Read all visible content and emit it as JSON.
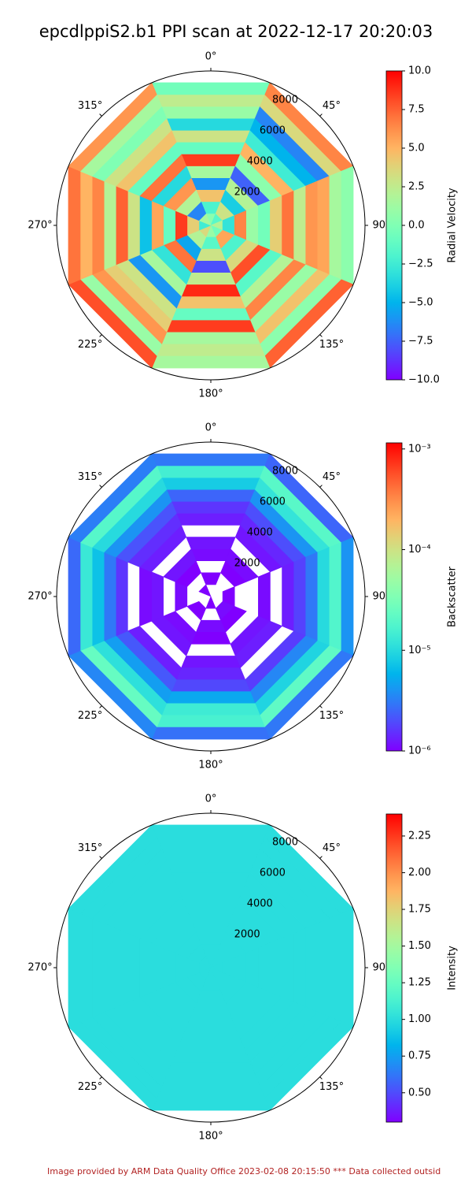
{
  "title": "epcdlppiS2.b1 PPI scan at 2022-12-17 20:20:03",
  "footnote": "Image provided by ARM Data Quality Office 2023-02-08 20:15:50    *** Data collected outsid",
  "chart_data": [
    {
      "type": "polar",
      "colormap": "rainbow",
      "color_scale": "linear",
      "theta_ticks": [
        {
          "value": 0,
          "label": "0°"
        },
        {
          "value": 45,
          "label": "45°"
        },
        {
          "value": 90,
          "label": "90°"
        },
        {
          "value": 135,
          "label": "135°"
        },
        {
          "value": 180,
          "label": "180°"
        },
        {
          "value": 225,
          "label": "225°"
        },
        {
          "value": 270,
          "label": "270°"
        },
        {
          "value": 315,
          "label": "315°"
        }
      ],
      "rlim": [
        0,
        9300
      ],
      "rticks": [
        2000,
        4000,
        6000,
        8000
      ],
      "azimuths": [
        0,
        45,
        90,
        135,
        180,
        225,
        270,
        315
      ],
      "range_edges": [
        0,
        775,
        1550,
        2325,
        3100,
        3875,
        4650,
        5425,
        6200,
        6975,
        7750,
        8525,
        9300
      ],
      "values": [
        [
          0.5,
          -2.0,
          4.5,
          -6.0,
          1.5,
          8.5,
          -1.0,
          3.0,
          -3.5,
          1.0,
          2.5,
          -0.5
        ],
        [
          -1.5,
          3.0,
          -4.0,
          2.0,
          -7.5,
          0.5,
          5.0,
          -2.5,
          -5.0,
          -6.5,
          3.5,
          6.5
        ],
        [
          2.0,
          -3.0,
          6.5,
          1.0,
          -0.5,
          4.0,
          7.0,
          2.5,
          6.0,
          5.5,
          1.5,
          0.5
        ],
        [
          -0.5,
          5.5,
          -2.0,
          3.5,
          8.0,
          -1.5,
          2.0,
          6.5,
          1.0,
          4.5,
          0.5,
          7.5
        ],
        [
          1.0,
          -1.5,
          3.0,
          -8.0,
          2.5,
          9.0,
          4.5,
          -1.0,
          8.5,
          1.5,
          2.5,
          1.5
        ],
        [
          3.5,
          2.0,
          -5.5,
          7.0,
          -3.0,
          1.5,
          -6.0,
          3.0,
          4.0,
          6.0,
          1.0,
          8.0
        ],
        [
          -2.5,
          4.0,
          8.5,
          -1.0,
          5.5,
          -4.5,
          3.0,
          7.5,
          2.0,
          6.5,
          5.0,
          7.0
        ],
        [
          1.5,
          -6.5,
          2.0,
          6.0,
          -3.5,
          7.0,
          -1.0,
          4.5,
          3.0,
          0.0,
          1.5,
          6.0
        ]
      ],
      "clim": [
        -10,
        10
      ],
      "cticks": [
        {
          "value": -10,
          "label": "−10.0"
        },
        {
          "value": -7.5,
          "label": "−7.5"
        },
        {
          "value": -5,
          "label": "−5.0"
        },
        {
          "value": -2.5,
          "label": "−2.5"
        },
        {
          "value": 0,
          "label": "0.0"
        },
        {
          "value": 2.5,
          "label": "2.5"
        },
        {
          "value": 5,
          "label": "5.0"
        },
        {
          "value": 7.5,
          "label": "7.5"
        },
        {
          "value": 10,
          "label": "10.0"
        }
      ],
      "colorbar_label": "Radial Velocity"
    },
    {
      "type": "polar",
      "colormap": "rainbow",
      "color_scale": "log",
      "theta_ticks": [
        {
          "value": 0,
          "label": "0°"
        },
        {
          "value": 45,
          "label": "45°"
        },
        {
          "value": 90,
          "label": "90°"
        },
        {
          "value": 135,
          "label": "135°"
        },
        {
          "value": 180,
          "label": "180°"
        },
        {
          "value": 225,
          "label": "225°"
        },
        {
          "value": 270,
          "label": "270°"
        },
        {
          "value": 315,
          "label": "315°"
        }
      ],
      "rlim": [
        0,
        9300
      ],
      "rticks": [
        2000,
        4000,
        6000,
        8000
      ],
      "azimuths": [
        0,
        45,
        90,
        135,
        180,
        225,
        270,
        315
      ],
      "range_edges": [
        0,
        775,
        1550,
        2325,
        3100,
        3875,
        4650,
        5425,
        6200,
        6975,
        7750,
        8525,
        9300
      ],
      "values": [
        [
          null,
          1e-06,
          null,
          1.1e-06,
          1.2e-06,
          null,
          1.3e-06,
          1.6e-06,
          2.5e-06,
          8e-06,
          1.5e-05,
          3e-06
        ],
        [
          null,
          null,
          1e-06,
          1.1e-06,
          null,
          1.2e-06,
          1.4e-06,
          2e-06,
          4e-06,
          1.2e-05,
          2e-05,
          2.5e-06
        ],
        [
          null,
          1e-06,
          null,
          null,
          1.1e-06,
          null,
          1.3e-06,
          1.8e-06,
          3e-06,
          1e-05,
          1.8e-05,
          4e-06
        ],
        [
          null,
          1.1e-06,
          1e-06,
          null,
          1.2e-06,
          1.3e-06,
          null,
          1.7e-06,
          3.5e-06,
          9e-06,
          2.2e-05,
          3e-06
        ],
        [
          1e-06,
          null,
          1.1e-06,
          1e-06,
          null,
          1.2e-06,
          1.4e-06,
          1.9e-06,
          5e-06,
          1.4e-05,
          1.6e-05,
          2.8e-06
        ],
        [
          null,
          1e-06,
          null,
          1.1e-06,
          1.2e-06,
          null,
          1.3e-06,
          2.2e-06,
          4.5e-06,
          1.1e-05,
          2.4e-05,
          3.5e-06
        ],
        [
          null,
          null,
          1.1e-06,
          null,
          1.2e-06,
          1.1e-06,
          null,
          1.6e-06,
          3e-06,
          7e-06,
          1.3e-05,
          2.6e-06
        ],
        [
          1e-06,
          null,
          1e-06,
          1.2e-06,
          null,
          1.3e-06,
          1.5e-06,
          2.1e-06,
          4e-06,
          1e-05,
          1.9e-05,
          3.2e-06
        ]
      ],
      "clim": [
        1e-06,
        0.00115
      ],
      "cticks": [
        {
          "value": 1e-06,
          "label": "10⁻⁶"
        },
        {
          "value": 1e-05,
          "label": "10⁻⁵"
        },
        {
          "value": 0.0001,
          "label": "10⁻⁴"
        },
        {
          "value": 0.001,
          "label": "10⁻³"
        }
      ],
      "colorbar_label": "Backscatter"
    },
    {
      "type": "polar",
      "colormap": "rainbow",
      "color_scale": "linear",
      "theta_ticks": [
        {
          "value": 0,
          "label": "0°"
        },
        {
          "value": 45,
          "label": "45°"
        },
        {
          "value": 90,
          "label": "90°"
        },
        {
          "value": 135,
          "label": "135°"
        },
        {
          "value": 180,
          "label": "180°"
        },
        {
          "value": 225,
          "label": "225°"
        },
        {
          "value": 270,
          "label": "270°"
        },
        {
          "value": 315,
          "label": "315°"
        }
      ],
      "rlim": [
        0,
        9300
      ],
      "rticks": [
        2000,
        4000,
        6000,
        8000
      ],
      "azimuths": [
        0,
        45,
        90,
        135,
        180,
        225,
        270,
        315
      ],
      "range_edges": [
        0,
        775,
        1550,
        2325,
        3100,
        3875,
        4650,
        5425,
        6200,
        6975,
        7750,
        8525,
        9300
      ],
      "values": [
        [
          1.0,
          1.0,
          1.0,
          1.0,
          1.0,
          1.0,
          1.0,
          1.0,
          1.0,
          1.0,
          1.0,
          1.0
        ],
        [
          1.0,
          1.0,
          1.0,
          1.0,
          1.0,
          1.0,
          1.0,
          1.0,
          1.0,
          1.0,
          1.0,
          1.0
        ],
        [
          1.0,
          1.0,
          1.0,
          1.0,
          1.0,
          1.0,
          1.0,
          1.0,
          1.0,
          1.0,
          1.0,
          1.0
        ],
        [
          1.0,
          1.0,
          1.0,
          1.0,
          1.0,
          1.0,
          1.0,
          1.0,
          1.0,
          1.0,
          1.0,
          1.0
        ],
        [
          1.0,
          1.0,
          1.0,
          1.0,
          1.0,
          1.0,
          1.0,
          1.0,
          1.0,
          1.0,
          1.0,
          1.0
        ],
        [
          1.0,
          1.0,
          1.0,
          1.0,
          1.0,
          1.0,
          1.0,
          1.0,
          1.0,
          1.0,
          1.0,
          1.0
        ],
        [
          1.0,
          1.0,
          1.0,
          1.0,
          1.0,
          1.0,
          1.0,
          1.0,
          1.0,
          1.0,
          1.0,
          1.0
        ],
        [
          1.0,
          1.0,
          1.0,
          1.0,
          1.0,
          1.0,
          1.0,
          1.0,
          1.0,
          1.0,
          1.0,
          1.0
        ]
      ],
      "clim": [
        0.3,
        2.4
      ],
      "cticks": [
        {
          "value": 0.5,
          "label": "0.50"
        },
        {
          "value": 0.75,
          "label": "0.75"
        },
        {
          "value": 1.0,
          "label": "1.00"
        },
        {
          "value": 1.25,
          "label": "1.25"
        },
        {
          "value": 1.5,
          "label": "1.50"
        },
        {
          "value": 1.75,
          "label": "1.75"
        },
        {
          "value": 2.0,
          "label": "2.00"
        },
        {
          "value": 2.25,
          "label": "2.25"
        }
      ],
      "colorbar_label": "Intensity"
    }
  ]
}
